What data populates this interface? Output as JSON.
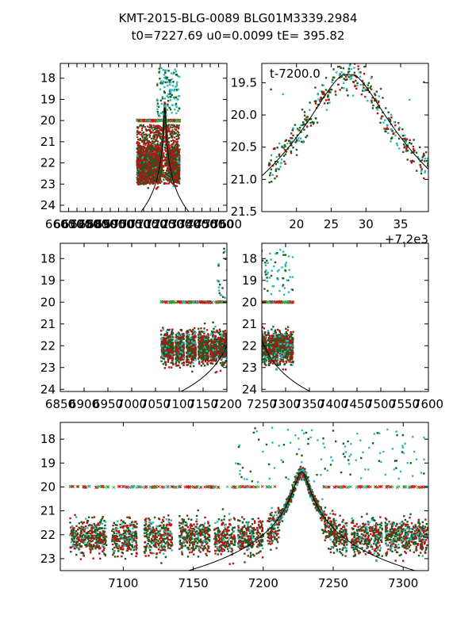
{
  "figure": {
    "title_line1": "KMT-2015-BLG-0089 BLG01M3339.2984",
    "title_line2": "t0=7227.69 u0=0.0099 tE= 395.82"
  },
  "colors": {
    "dark_green": "#1a5c1a",
    "red": "#b31515",
    "cyan": "#30b8b8",
    "bright_red": "#e01010",
    "bright_green": "#20b020",
    "model_line": "#000000",
    "axes": "#000000"
  },
  "model": {
    "t0": 7227.69,
    "u0": 0.0099,
    "tE": 395.82
  },
  "chart_data": [
    {
      "id": "panel-top-left",
      "type": "scatter",
      "xlim": [
        6600,
        7600
      ],
      "ylim": [
        24.3,
        17.3
      ],
      "xticks": [
        6600,
        6650,
        6700,
        6750,
        6800,
        6850,
        6900,
        6950,
        7000,
        7050,
        7100,
        7150,
        7200,
        7250,
        7300,
        7350,
        7400,
        7450,
        7500,
        7550,
        7600
      ],
      "xtick_labels": [
        "6600",
        "6650",
        "6700",
        "6750",
        "6800",
        "6850",
        "6900",
        "6950",
        "7000",
        "7050",
        "7100",
        "7150",
        "7200",
        "7250",
        "7300",
        "7350",
        "7400",
        "7450",
        "7500",
        "7550",
        "7600"
      ],
      "yticks": [
        18,
        19,
        20,
        21,
        22,
        23,
        24
      ],
      "ytick_labels": [
        "18",
        "19",
        "20",
        "21",
        "22",
        "23",
        "24"
      ],
      "annotation": "",
      "offset_label": "",
      "data_xrange": [
        7060,
        7315
      ],
      "series": [
        "dark_green",
        "red",
        "cyan",
        "red_dense"
      ]
    },
    {
      "id": "panel-top-right",
      "type": "scatter",
      "xlim": [
        7215,
        7239
      ],
      "ylim": [
        21.5,
        19.2
      ],
      "xticks": [
        7220,
        7225,
        7230,
        7235
      ],
      "xtick_labels": [
        "20",
        "25",
        "30",
        "35"
      ],
      "yticks": [
        19.5,
        20.0,
        20.5,
        21.0,
        21.5
      ],
      "ytick_labels": [
        "19.5",
        "20.0",
        "20.5",
        "21.0",
        "21.5"
      ],
      "annotation": "t-7200.0",
      "offset_label": "+7.2e3",
      "data_xrange": [
        7217,
        7239
      ],
      "series": [
        "dark_green",
        "red",
        "cyan"
      ]
    },
    {
      "id": "panel-mid-left",
      "type": "scatter",
      "xlim": [
        6850,
        7200
      ],
      "ylim": [
        24.1,
        17.3
      ],
      "xticks": [
        6850,
        6900,
        6950,
        7000,
        7050,
        7100,
        7150,
        7200
      ],
      "xtick_labels": [
        "6850",
        "6900",
        "6950",
        "7000",
        "7050",
        "7100",
        "7150",
        "7200"
      ],
      "yticks": [
        18,
        19,
        20,
        21,
        22,
        23,
        24
      ],
      "ytick_labels": [
        "18",
        "19",
        "20",
        "21",
        "22",
        "23",
        "24"
      ],
      "annotation": "",
      "offset_label": "",
      "data_xrange": [
        7060,
        7200
      ],
      "series": [
        "dark_green",
        "red",
        "cyan"
      ]
    },
    {
      "id": "panel-mid-right",
      "type": "scatter",
      "xlim": [
        7250,
        7600
      ],
      "ylim": [
        24.1,
        17.3
      ],
      "xticks": [
        7250,
        7300,
        7350,
        7400,
        7450,
        7500,
        7550,
        7600
      ],
      "xtick_labels": [
        "7250",
        "7300",
        "7350",
        "7400",
        "7450",
        "7500",
        "7550",
        "7600"
      ],
      "yticks": [
        18,
        19,
        20,
        21,
        22,
        23,
        24
      ],
      "ytick_labels": [
        "18",
        "19",
        "20",
        "21",
        "22",
        "23",
        "24"
      ],
      "annotation": "",
      "offset_label": "",
      "data_xrange": [
        7250,
        7315
      ],
      "series": [
        "dark_green",
        "red",
        "cyan"
      ]
    },
    {
      "id": "panel-bottom",
      "type": "scatter",
      "xlim": [
        7055,
        7318
      ],
      "ylim": [
        23.5,
        17.3
      ],
      "xticks": [
        7100,
        7150,
        7200,
        7250,
        7300
      ],
      "xtick_labels": [
        "7100",
        "7150",
        "7200",
        "7250",
        "7300"
      ],
      "yticks": [
        18,
        19,
        20,
        21,
        22,
        23
      ],
      "ytick_labels": [
        "18",
        "19",
        "20",
        "21",
        "22",
        "23"
      ],
      "annotation": "",
      "offset_label": "",
      "data_xrange": [
        7060,
        7318
      ],
      "series": [
        "dark_green",
        "red",
        "cyan"
      ]
    }
  ]
}
